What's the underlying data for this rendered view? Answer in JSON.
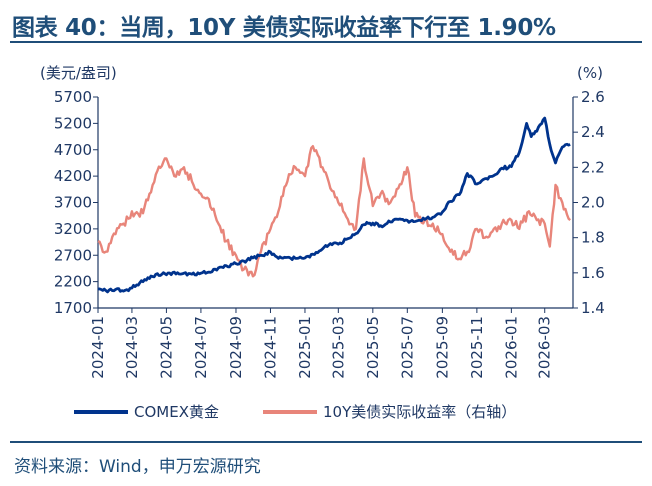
{
  "header": {
    "title": "图表 40：当周，10Y 美债实际收益率下行至 1.90%"
  },
  "footer": {
    "source": "资料来源：Wind，申万宏源研究"
  },
  "chart_data": {
    "type": "line",
    "left_unit": "(美元/盎司)",
    "right_unit": "(%)",
    "left_ticks": [
      "5700",
      "5200",
      "4700",
      "4200",
      "3700",
      "3200",
      "2700",
      "2200",
      "1700"
    ],
    "right_ticks": [
      "2.6",
      "2.4",
      "2.2",
      "2.0",
      "1.8",
      "1.6",
      "1.4"
    ],
    "x_ticks": [
      "2024-01",
      "2024-03",
      "2024-05",
      "2024-07",
      "2024-09",
      "2024-11",
      "2025-01",
      "2025-03",
      "2025-05",
      "2025-07",
      "2025-09",
      "2025-11",
      "2026-01",
      "2026-03"
    ],
    "ylim_left": [
      1700,
      5700
    ],
    "ylim_right": [
      1.4,
      2.6
    ],
    "grid": false,
    "legend_position": "bottom",
    "series": [
      {
        "name": "COMEX黄金",
        "axis": "left",
        "color": "#00338d",
        "x": [
          "2024-01-01",
          "2024-01-15",
          "2024-02-01",
          "2024-02-15",
          "2024-03-01",
          "2024-03-15",
          "2024-04-01",
          "2024-04-15",
          "2024-05-01",
          "2024-05-15",
          "2024-06-01",
          "2024-06-15",
          "2024-07-01",
          "2024-07-15",
          "2024-08-01",
          "2024-08-15",
          "2024-09-01",
          "2024-09-15",
          "2024-10-01",
          "2024-10-15",
          "2024-11-01",
          "2024-11-15",
          "2024-12-01",
          "2024-12-15",
          "2025-01-01",
          "2025-01-15",
          "2025-02-01",
          "2025-02-15",
          "2025-03-01",
          "2025-03-15",
          "2025-04-01",
          "2025-04-15",
          "2025-05-01",
          "2025-05-15",
          "2025-06-01",
          "2025-06-15",
          "2025-07-01",
          "2025-07-15",
          "2025-08-01",
          "2025-08-15",
          "2025-09-01",
          "2025-09-15",
          "2025-10-01",
          "2025-10-15",
          "2025-11-01",
          "2025-11-15",
          "2025-12-01",
          "2025-12-15",
          "2026-01-01",
          "2026-01-15",
          "2026-01-28",
          "2026-02-05",
          "2026-02-15",
          "2026-03-01",
          "2026-03-10",
          "2026-03-20",
          "2026-04-01",
          "2026-04-15"
        ],
        "values": [
          2060,
          2030,
          2050,
          2020,
          2080,
          2180,
          2260,
          2350,
          2330,
          2380,
          2360,
          2340,
          2360,
          2380,
          2460,
          2500,
          2540,
          2590,
          2650,
          2700,
          2760,
          2640,
          2660,
          2640,
          2650,
          2720,
          2820,
          2920,
          2910,
          3000,
          3110,
          3280,
          3310,
          3260,
          3330,
          3380,
          3360,
          3340,
          3380,
          3420,
          3520,
          3720,
          3850,
          4250,
          4050,
          4150,
          4210,
          4350,
          4380,
          4650,
          5200,
          4950,
          5050,
          5300,
          4800,
          4450,
          4750,
          4800
        ]
      },
      {
        "name": "10Y美债实际收益率（右轴）",
        "axis": "right",
        "color": "#e8857a",
        "x": [
          "2024-01-01",
          "2024-01-15",
          "2024-02-01",
          "2024-02-15",
          "2024-03-01",
          "2024-03-15",
          "2024-04-01",
          "2024-04-15",
          "2024-05-01",
          "2024-05-15",
          "2024-06-01",
          "2024-06-15",
          "2024-07-01",
          "2024-07-15",
          "2024-08-01",
          "2024-08-15",
          "2024-09-01",
          "2024-09-15",
          "2024-10-01",
          "2024-10-15",
          "2024-11-01",
          "2024-11-15",
          "2024-12-01",
          "2024-12-15",
          "2025-01-01",
          "2025-01-15",
          "2025-02-01",
          "2025-02-15",
          "2025-03-01",
          "2025-03-15",
          "2025-04-01",
          "2025-04-15",
          "2025-05-01",
          "2025-05-15",
          "2025-06-01",
          "2025-06-15",
          "2025-07-01",
          "2025-07-15",
          "2025-08-01",
          "2025-08-15",
          "2025-09-01",
          "2025-09-15",
          "2025-10-01",
          "2025-10-15",
          "2025-11-01",
          "2025-11-15",
          "2025-12-01",
          "2025-12-15",
          "2026-01-01",
          "2026-01-15",
          "2026-02-01",
          "2026-02-15",
          "2026-03-01",
          "2026-03-10",
          "2026-03-20",
          "2026-04-01",
          "2026-04-15"
        ],
        "values": [
          1.78,
          1.72,
          1.82,
          1.88,
          1.95,
          1.92,
          2.05,
          2.18,
          2.25,
          2.15,
          2.2,
          2.12,
          2.05,
          2.02,
          1.88,
          1.78,
          1.7,
          1.62,
          1.58,
          1.72,
          1.85,
          1.95,
          2.12,
          2.2,
          2.15,
          2.32,
          2.2,
          2.08,
          2.0,
          1.92,
          1.85,
          2.25,
          1.98,
          2.05,
          2.0,
          2.08,
          2.2,
          1.92,
          1.9,
          1.88,
          1.82,
          1.72,
          1.68,
          1.72,
          1.85,
          1.8,
          1.85,
          1.88,
          1.9,
          1.85,
          1.95,
          1.9,
          1.88,
          1.75,
          2.1,
          2.0,
          1.9
        ]
      }
    ]
  }
}
